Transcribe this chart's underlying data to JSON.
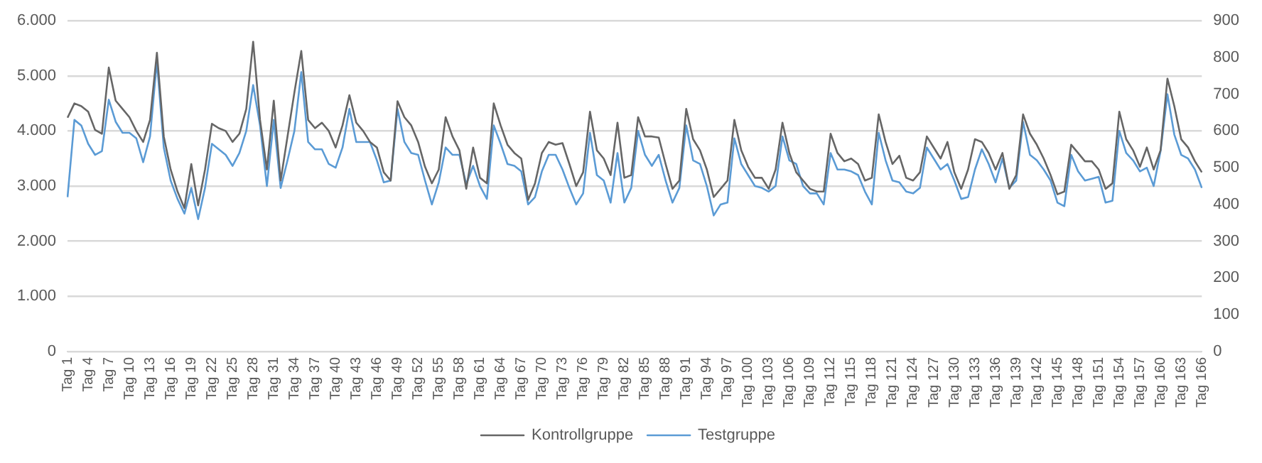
{
  "chart_data": {
    "type": "line",
    "categories": [
      "Tag 1",
      null,
      null,
      "Tag 4",
      null,
      null,
      "Tag 7",
      null,
      null,
      "Tag 10",
      null,
      null,
      "Tag 13",
      null,
      null,
      "Tag 16",
      null,
      null,
      "Tag 19",
      null,
      null,
      "Tag 22",
      null,
      null,
      "Tag 25",
      null,
      null,
      "Tag 28",
      null,
      null,
      "Tag 31",
      null,
      null,
      "Tag 34",
      null,
      null,
      "Tag 37",
      null,
      null,
      "Tag 40",
      null,
      null,
      "Tag 43",
      null,
      null,
      "Tag 46",
      null,
      null,
      "Tag 49",
      null,
      null,
      "Tag 52",
      null,
      null,
      "Tag 55",
      null,
      null,
      "Tag 58",
      null,
      null,
      "Tag 61",
      null,
      null,
      "Tag 64",
      null,
      null,
      "Tag 67",
      null,
      null,
      "Tag 70",
      null,
      null,
      "Tag 73",
      null,
      null,
      "Tag 76",
      null,
      null,
      "Tag 79",
      null,
      null,
      "Tag 82",
      null,
      null,
      "Tag 85",
      null,
      null,
      "Tag 88",
      null,
      null,
      "Tag 91",
      null,
      null,
      "Tag 94",
      null,
      null,
      "Tag 97",
      null,
      null,
      "Tag 100",
      null,
      null,
      "Tag 103",
      null,
      null,
      "Tag 106",
      null,
      null,
      "Tag 109",
      null,
      null,
      "Tag 112",
      null,
      null,
      "Tag 115",
      null,
      null,
      "Tag 118",
      null,
      null,
      "Tag 121",
      null,
      null,
      "Tag 124",
      null,
      null,
      "Tag 127",
      null,
      null,
      "Tag 130",
      null,
      null,
      "Tag 133",
      null,
      null,
      "Tag 136",
      null,
      null,
      "Tag 139",
      null,
      null,
      "Tag 142",
      null,
      null,
      "Tag 145",
      null,
      null,
      "Tag 148",
      null,
      null,
      "Tag 151",
      null,
      null,
      "Tag 154",
      null,
      null,
      "Tag 157",
      null,
      null,
      "Tag 160",
      null,
      null,
      "Tag 163",
      null,
      null,
      "Tag 166"
    ],
    "series": [
      {
        "name": "Kontrollgruppe",
        "color": "#666666",
        "values": [
          4240,
          4500,
          4450,
          4350,
          4020,
          3950,
          5150,
          4550,
          4400,
          4250,
          4000,
          3800,
          4200,
          5420,
          3900,
          3300,
          2900,
          2600,
          3400,
          2650,
          3300,
          4130,
          4050,
          4000,
          3800,
          3950,
          4400,
          5620,
          4200,
          3300,
          4550,
          3100,
          3900,
          4700,
          5450,
          4200,
          4050,
          4150,
          4000,
          3700,
          4100,
          4650,
          4150,
          4000,
          3800,
          3700,
          3250,
          3100,
          4540,
          4250,
          4100,
          3800,
          3350,
          3050,
          3300,
          4250,
          3900,
          3650,
          2950,
          3700,
          3150,
          3050,
          4500,
          4100,
          3750,
          3600,
          3500,
          2750,
          3050,
          3600,
          3800,
          3750,
          3780,
          3400,
          3000,
          3250,
          4350,
          3650,
          3500,
          3200,
          4150,
          3150,
          3200,
          4250,
          3900,
          3900,
          3880,
          3400,
          2950,
          3100,
          4400,
          3850,
          3650,
          3300,
          2800,
          2950,
          3100,
          4200,
          3650,
          3350,
          3150,
          3150,
          2950,
          3300,
          4150,
          3600,
          3250,
          3100,
          2950,
          2900,
          2900,
          3950,
          3600,
          3450,
          3500,
          3400,
          3100,
          3150,
          4300,
          3800,
          3400,
          3550,
          3150,
          3100,
          3250,
          3900,
          3700,
          3500,
          3800,
          3250,
          2950,
          3300,
          3850,
          3800,
          3600,
          3300,
          3600,
          2950,
          3200,
          4300,
          3950,
          3750,
          3500,
          3200,
          2850,
          2900,
          3750,
          3600,
          3450,
          3450,
          3300,
          2950,
          3050,
          4350,
          3850,
          3650,
          3350,
          3700,
          3300,
          3650,
          4950,
          4450,
          3850,
          3700,
          3450,
          3250
        ]
      },
      {
        "name": "Testgruppe",
        "color": "#5b9bd5",
        "axis": "y2",
        "values": [
          420,
          630,
          615,
          565,
          535,
          545,
          685,
          625,
          595,
          595,
          580,
          515,
          585,
          790,
          555,
          465,
          415,
          375,
          445,
          360,
          445,
          565,
          550,
          535,
          505,
          540,
          600,
          725,
          615,
          450,
          630,
          445,
          520,
          600,
          760,
          570,
          550,
          550,
          510,
          500,
          555,
          660,
          570,
          570,
          570,
          520,
          460,
          465,
          660,
          570,
          540,
          535,
          465,
          400,
          460,
          555,
          535,
          535,
          455,
          505,
          450,
          415,
          615,
          565,
          510,
          505,
          490,
          400,
          420,
          490,
          535,
          535,
          495,
          445,
          400,
          430,
          595,
          480,
          465,
          405,
          540,
          405,
          445,
          600,
          535,
          505,
          535,
          465,
          405,
          445,
          615,
          520,
          510,
          450,
          370,
          400,
          405,
          580,
          510,
          480,
          450,
          445,
          435,
          450,
          585,
          520,
          510,
          450,
          430,
          430,
          400,
          540,
          495,
          495,
          490,
          480,
          435,
          400,
          595,
          520,
          465,
          460,
          435,
          430,
          445,
          555,
          525,
          495,
          510,
          465,
          415,
          420,
          495,
          550,
          510,
          460,
          525,
          445,
          465,
          625,
          535,
          520,
          495,
          465,
          405,
          395,
          535,
          490,
          465,
          470,
          475,
          405,
          410,
          600,
          540,
          520,
          490,
          500,
          450,
          545,
          700,
          590,
          535,
          525,
          495,
          445
        ]
      }
    ],
    "ylim": [
      0,
      6000
    ],
    "yticks": [
      {
        "value": 0,
        "label": "0"
      },
      {
        "value": 1000,
        "label": "1.000"
      },
      {
        "value": 2000,
        "label": "2.000"
      },
      {
        "value": 3000,
        "label": "3.000"
      },
      {
        "value": 4000,
        "label": "4.000"
      },
      {
        "value": 5000,
        "label": "5.000"
      },
      {
        "value": 6000,
        "label": "6.000"
      }
    ],
    "y2lim": [
      0,
      900
    ],
    "y2ticks": [
      0,
      100,
      200,
      300,
      400,
      500,
      600,
      700,
      800,
      900
    ],
    "grid": "y",
    "legend": "bottom",
    "marker": "none",
    "line_style": "solid"
  }
}
